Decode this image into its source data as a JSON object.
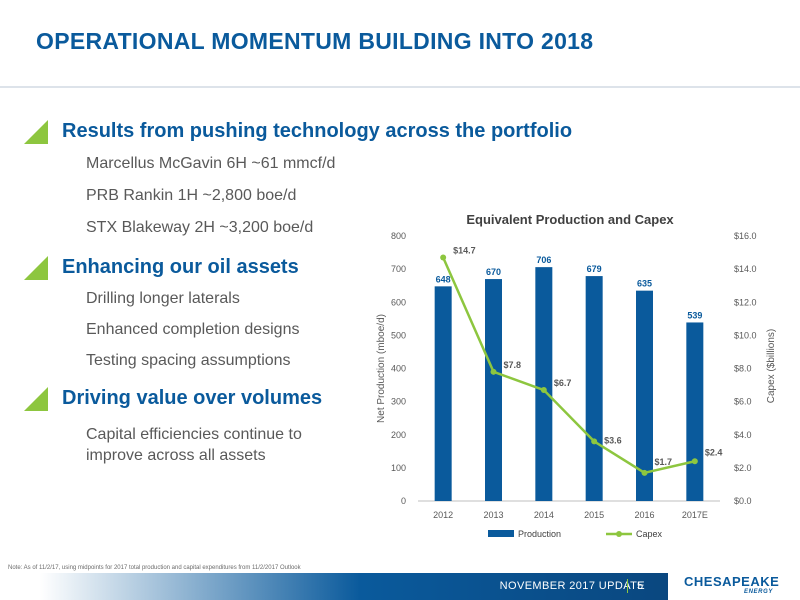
{
  "slide": {
    "title": "OPERATIONAL MOMENTUM BUILDING INTO 2018"
  },
  "sections": [
    {
      "heading": "Results from pushing technology across the portfolio",
      "bullets": [
        "Marcellus McGavin 6H ~61 mmcf/d",
        "PRB Rankin 1H ~2,800 boe/d",
        "STX Blakeway 2H ~3,200 boe/d"
      ]
    },
    {
      "heading": "Enhancing our oil assets",
      "bullets": [
        "Drilling longer laterals",
        "Enhanced completion designs",
        "Testing spacing assumptions"
      ]
    },
    {
      "heading": "Driving value over volumes",
      "bullets": [
        "Capital efficiencies continue to improve across all assets"
      ]
    }
  ],
  "chart_data": {
    "type": "bar",
    "title": "Equivalent Production and Capex",
    "categories": [
      "2012",
      "2013",
      "2014",
      "2015",
      "2016",
      "2017E"
    ],
    "series": [
      {
        "name": "Production",
        "type": "bar",
        "axis": "left",
        "values": [
          648,
          670,
          706,
          679,
          635,
          539
        ],
        "labels": [
          "648",
          "670",
          "706",
          "679",
          "635",
          "539"
        ],
        "color": "#0a5a9c"
      },
      {
        "name": "Capex",
        "type": "line",
        "axis": "right",
        "values": [
          14.7,
          7.8,
          6.7,
          3.6,
          1.7,
          2.4
        ],
        "labels": [
          "$14.7",
          "$7.8",
          "$6.7",
          "$3.6",
          "$1.7",
          "$2.4"
        ],
        "color": "#8dc63f"
      }
    ],
    "ylabel": "Net Production (mboe/d)",
    "ylim": [
      0,
      800
    ],
    "yticks": [
      "0",
      "100",
      "200",
      "300",
      "400",
      "500",
      "600",
      "700",
      "800"
    ],
    "y2label": "Capex ($billions)",
    "y2lim": [
      0,
      16
    ],
    "y2ticks": [
      "$0.0",
      "$2.0",
      "$4.0",
      "$6.0",
      "$8.0",
      "$10.0",
      "$12.0",
      "$14.0",
      "$16.0"
    ],
    "legend": "bottom",
    "grid": false
  },
  "footer": {
    "note": "Note: As of 11/2/17, using midpoints for 2017 total production and capital expenditures from 11/2/2017 Outlook",
    "label": "NOVEMBER 2017 UPDATE",
    "page": "5",
    "logo_main": "CHESAPEAKE",
    "logo_sub": "ENERGY"
  },
  "colors": {
    "brand_blue": "#0a5a9c",
    "accent_green": "#8dc63f"
  }
}
